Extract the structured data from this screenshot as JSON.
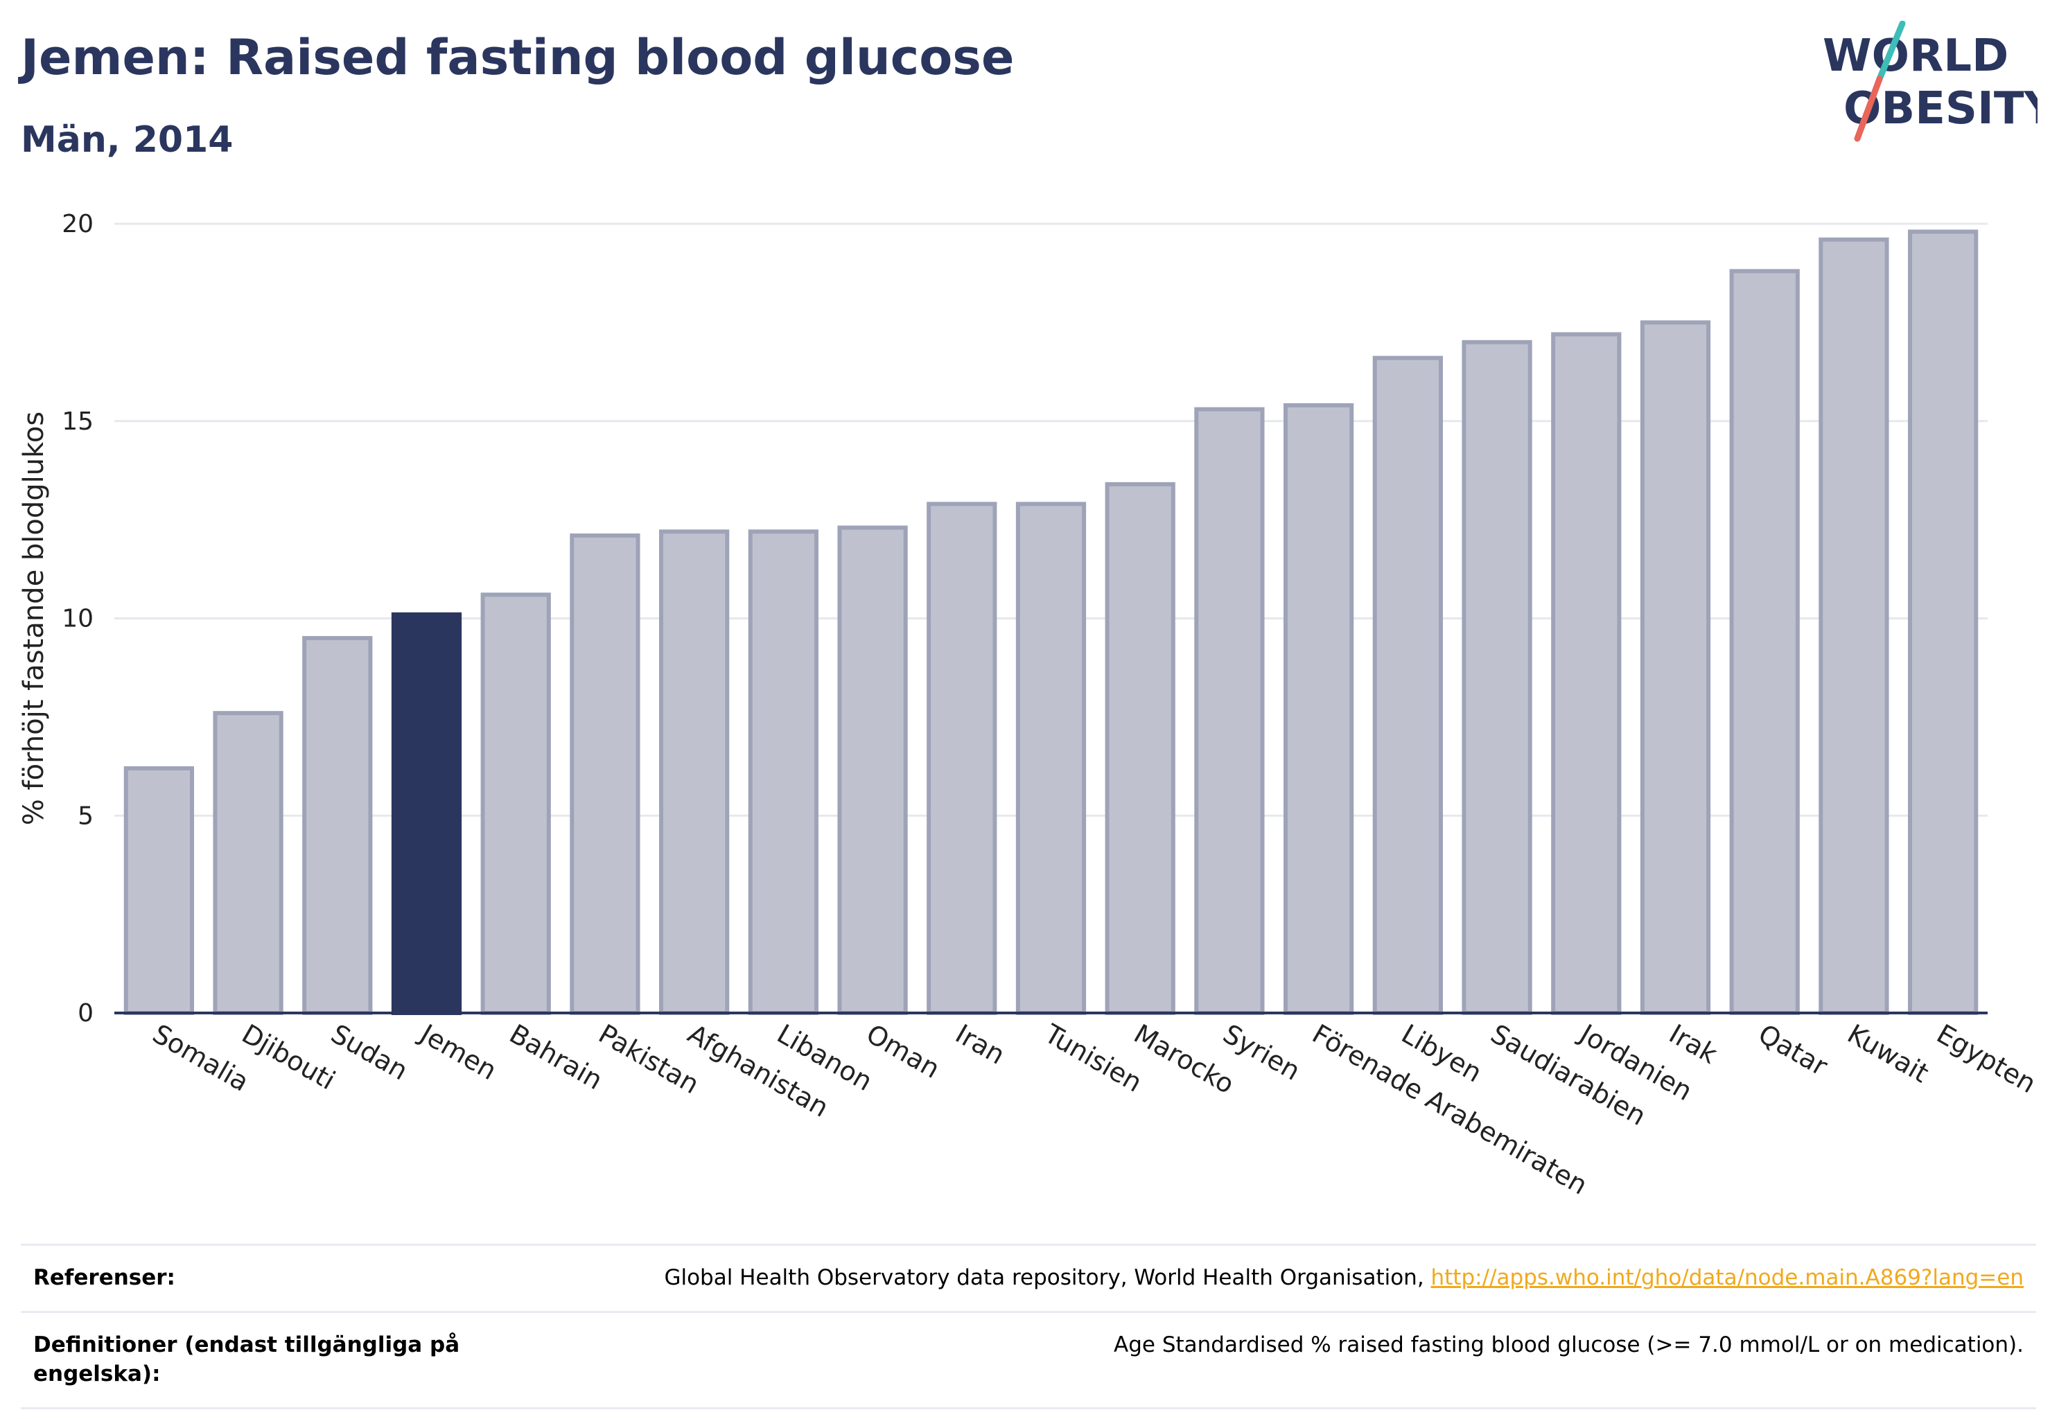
{
  "header": {
    "title": "Jemen: Raised fasting blood glucose",
    "subtitle": "Män, 2014"
  },
  "logo": {
    "line1": "WORLD",
    "line2": "OBESITY",
    "text_color": "#2b365f",
    "slash_top_color": "#3dbdb8",
    "slash_bottom_color": "#e8665a"
  },
  "chart_data": {
    "type": "bar",
    "categories": [
      "Somalia",
      "Djibouti",
      "Sudan",
      "Jemen",
      "Bahrain",
      "Pakistan",
      "Afghanistan",
      "Libanon",
      "Oman",
      "Iran",
      "Tunisien",
      "Marocko",
      "Syrien",
      "Förenade Arabemiraten",
      "Libyen",
      "Saudiarabien",
      "Jordanien",
      "Irak",
      "Qatar",
      "Kuwait",
      "Egypten"
    ],
    "values": [
      6.2,
      7.6,
      9.5,
      10.1,
      10.6,
      12.1,
      12.2,
      12.2,
      12.3,
      12.9,
      12.9,
      13.4,
      15.3,
      15.4,
      16.6,
      17.0,
      17.2,
      17.5,
      18.8,
      19.6,
      19.8
    ],
    "highlight": "Jemen",
    "ylabel": "% förhöjt fastande blodglukos",
    "xlabel": "",
    "ylim": [
      0,
      20
    ],
    "yticks": [
      0,
      5,
      10,
      15,
      20
    ],
    "grid": true,
    "colors": {
      "bar": "#bfc2ce",
      "bar_border": "#9ea3b8",
      "highlight": "#2b365f",
      "grid": "#e6e8ee",
      "axis": "#2b365f"
    }
  },
  "footer": {
    "references_label": "Referenser:",
    "references_text": "Global Health Observatory data repository, World Health Organisation, ",
    "references_link": "http://apps.who.int/gho/data/node.main.A869?lang=en",
    "definitions_label": "Definitioner (endast tillgängliga på engelska):",
    "definitions_text": "Age Standardised % raised fasting blood glucose (>= 7.0 mmol/L or on medication)."
  }
}
